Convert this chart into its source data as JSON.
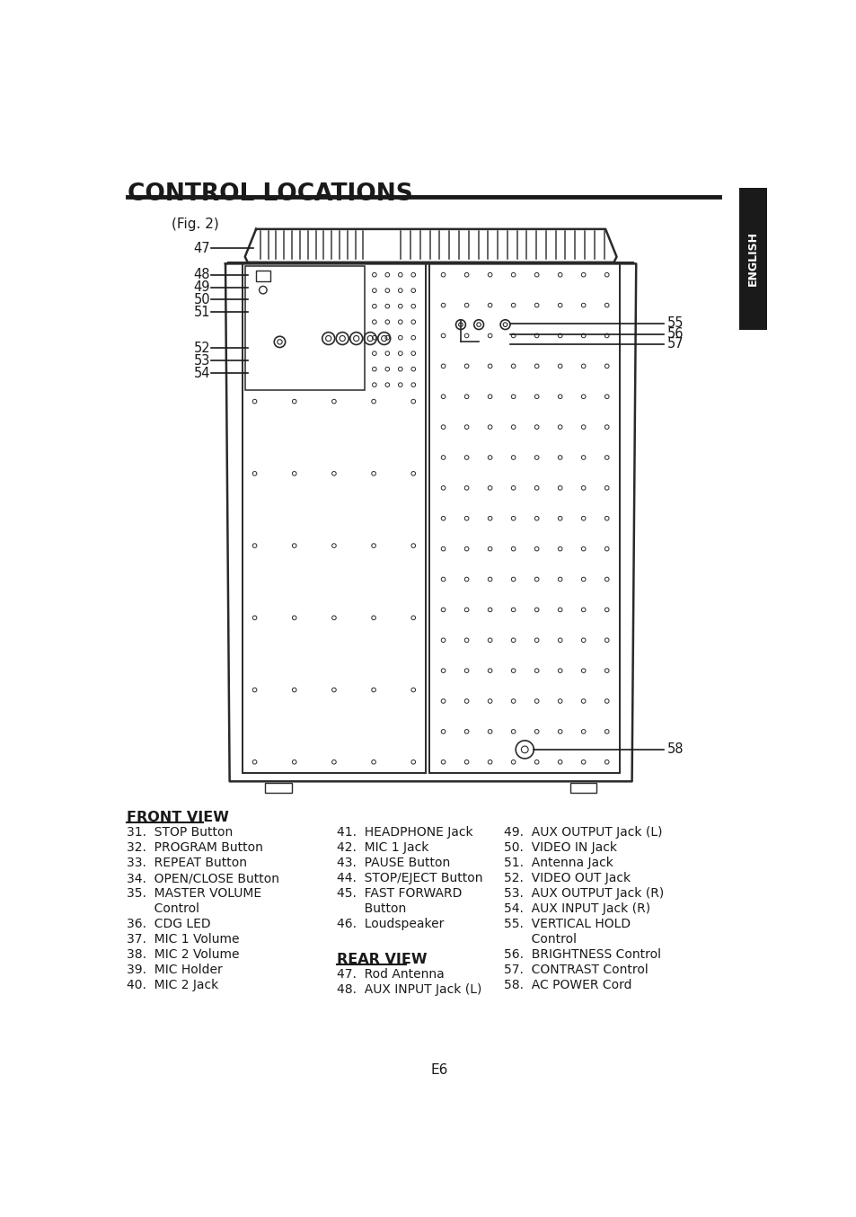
{
  "title": "CONTROL LOCATIONS",
  "fig_label": "(Fig. 2)",
  "page_num": "E6",
  "bg_color": "#ffffff",
  "text_color": "#1a1a1a",
  "line_color": "#2a2a2a",
  "front_col": [
    "31.  STOP Button",
    "32.  PROGRAM Button",
    "33.  REPEAT Button",
    "34.  OPEN/CLOSE Button",
    "35.  MASTER VOLUME",
    "       Control",
    "36.  CDG LED",
    "37.  MIC 1 Volume",
    "38.  MIC 2 Volume",
    "39.  MIC Holder",
    "40.  MIC 2 Jack"
  ],
  "mid_col": [
    "41.  HEADPHONE Jack",
    "42.  MIC 1 Jack",
    "43.  PAUSE Button",
    "44.  STOP/EJECT Button",
    "45.  FAST FORWARD",
    "       Button",
    "46.  Loudspeaker"
  ],
  "rear_col": [
    "47.  Rod Antenna",
    "48.  AUX INPUT Jack (L)"
  ],
  "right_col": [
    "49.  AUX OUTPUT Jack (L)",
    "50.  VIDEO IN Jack",
    "51.  Antenna Jack",
    "52.  VIDEO OUT Jack",
    "53.  AUX OUTPUT Jack (R)",
    "54.  AUX INPUT Jack (R)",
    "55.  VERTICAL HOLD",
    "       Control",
    "56.  BRIGHTNESS Control",
    "57.  CONTRAST Control",
    "58.  AC POWER Cord"
  ]
}
